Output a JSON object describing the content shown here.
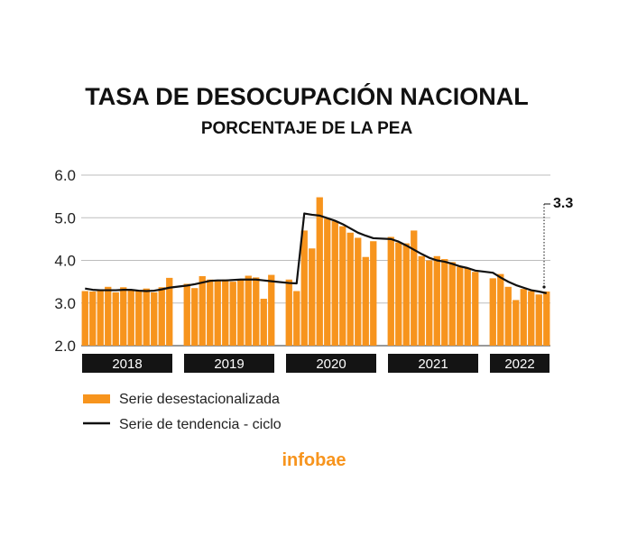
{
  "colors": {
    "bar": "#F7941D",
    "trend": "#111111",
    "grid": "#bdbdbd",
    "yearbox": "#141414",
    "brand": "#F7941D"
  },
  "chart_data": {
    "type": "bar",
    "title": "TASA DE DESOCUPACIÓN NACIONAL",
    "subtitle": "PORCENTAJE DE LA PEA",
    "xlabel": "",
    "ylabel": "",
    "ylim": [
      2.0,
      6.0
    ],
    "yticks": [
      "6.0",
      "5.0",
      "4.0",
      "3.0",
      "2.0"
    ],
    "grid": true,
    "legend_placement": "bottom-left",
    "years": [
      "2018",
      "2019",
      "2020",
      "2021",
      "2022"
    ],
    "months_per_year": [
      12,
      12,
      12,
      12,
      8
    ],
    "series": [
      {
        "name": "Serie desestacionalizada",
        "kind": "bar",
        "values": [
          [
            3.28,
            3.27,
            3.3,
            3.38,
            3.25,
            3.37,
            3.3,
            3.29,
            3.34,
            3.25,
            3.37,
            3.59
          ],
          [
            3.45,
            3.35,
            3.63,
            3.55,
            3.53,
            3.55,
            3.5,
            3.56,
            3.64,
            3.6,
            3.1,
            3.66
          ],
          [
            3.55,
            3.28,
            4.7,
            4.28,
            5.48,
            4.98,
            4.92,
            4.8,
            4.65,
            4.53,
            4.08,
            4.45
          ],
          [
            4.55,
            4.42,
            4.4,
            4.7,
            4.1,
            4.0,
            4.1,
            4.03,
            3.96,
            3.85,
            3.82,
            3.73
          ],
          [
            3.58,
            3.68,
            3.38,
            3.07,
            3.33,
            3.28,
            3.2,
            3.27
          ]
        ]
      },
      {
        "name": "Serie de tendencia - ciclo",
        "kind": "line",
        "values": [
          [
            3.34,
            3.31,
            3.3,
            3.3,
            3.3,
            3.31,
            3.31,
            3.29,
            3.28,
            3.29,
            3.32,
            3.36
          ],
          [
            3.41,
            3.44,
            3.48,
            3.52,
            3.53,
            3.53,
            3.54,
            3.55,
            3.55,
            3.55,
            3.53,
            3.51
          ],
          [
            3.47,
            3.46,
            5.1,
            5.07,
            5.05,
            4.99,
            4.93,
            4.85,
            4.75,
            4.65,
            4.58,
            4.52
          ],
          [
            4.5,
            4.44,
            4.35,
            4.25,
            4.15,
            4.06,
            4.0,
            3.97,
            3.92,
            3.86,
            3.82,
            3.76
          ],
          [
            3.71,
            3.6,
            3.5,
            3.42,
            3.36,
            3.3,
            3.27,
            3.23
          ]
        ]
      }
    ],
    "annotation": "3.3"
  },
  "legend": {
    "bar_label": "Serie desestacionalizada",
    "line_label": "Serie de tendencia - ciclo"
  },
  "brand": "infobae"
}
